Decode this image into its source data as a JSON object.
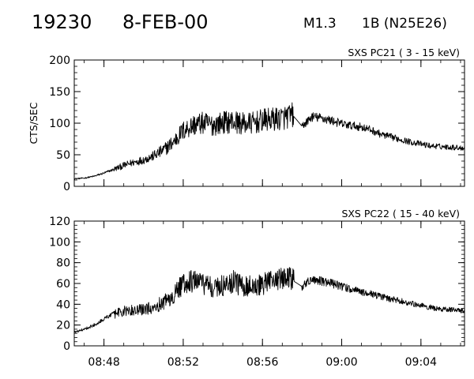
{
  "header": {
    "event_id": "19230",
    "date": "8-FEB-00",
    "goes_class": "M1.3",
    "optical_class": "1B (N25E26)"
  },
  "chart_data": [
    {
      "type": "line",
      "title": "SXS PC21  (  3 - 15 keV)",
      "ylabel": "CTS/SEC",
      "xlabel": "",
      "ylim": [
        0,
        200
      ],
      "yticks": [
        0,
        50,
        100,
        150,
        200
      ],
      "xlim_min": [
        46.5,
        66.2
      ],
      "xticks": [
        "08:48",
        "08:52",
        "08:56",
        "09:00",
        "09:04"
      ],
      "grid": false,
      "series": [
        {
          "x_min": [
            46.5,
            47.0,
            47.5,
            48.0,
            48.5,
            49.0,
            49.5,
            50.0,
            50.5,
            51.0,
            51.5,
            52.0,
            52.5,
            53.0,
            53.5,
            54.0,
            54.5,
            55.0,
            55.5,
            56.0,
            56.5,
            57.0,
            57.5,
            57.6,
            58.0,
            58.5,
            59.0,
            59.5,
            60.0,
            60.5,
            61.0,
            61.5,
            62.0,
            62.5,
            63.0,
            63.5,
            64.0,
            64.5,
            65.0,
            65.5,
            66.0,
            66.2
          ],
          "values": [
            12,
            13,
            16,
            21,
            27,
            33,
            38,
            42,
            48,
            57,
            70,
            88,
            97,
            100,
            97,
            101,
            103,
            99,
            100,
            104,
            106,
            108,
            113,
            110,
            95,
            110,
            108,
            104,
            99,
            96,
            94,
            89,
            82,
            78,
            74,
            70,
            67,
            64,
            63,
            62,
            61,
            61
          ]
        }
      ]
    },
    {
      "type": "line",
      "title": "SXS PC22  ( 15 - 40 keV)",
      "ylabel": "",
      "xlabel": "",
      "ylim": [
        0,
        120
      ],
      "yticks": [
        0,
        20,
        40,
        60,
        80,
        100,
        120
      ],
      "xlim_min": [
        46.5,
        66.2
      ],
      "xticks": [
        "08:48",
        "08:52",
        "08:56",
        "09:00",
        "09:04"
      ],
      "grid": false,
      "series": [
        {
          "x_min": [
            46.5,
            47.0,
            47.5,
            48.0,
            48.5,
            49.0,
            49.5,
            50.0,
            50.5,
            51.0,
            51.5,
            52.0,
            52.5,
            53.0,
            53.5,
            54.0,
            54.5,
            55.0,
            55.5,
            56.0,
            56.5,
            57.0,
            57.5,
            57.6,
            58.0,
            58.5,
            59.0,
            59.5,
            60.0,
            60.5,
            61.0,
            61.5,
            62.0,
            62.5,
            63.0,
            63.5,
            64.0,
            64.5,
            65.0,
            65.5,
            66.0,
            66.2
          ],
          "values": [
            13,
            16,
            20,
            26,
            31,
            33,
            34,
            35,
            37,
            42,
            48,
            60,
            63,
            60,
            56,
            58,
            62,
            57,
            58,
            59,
            62,
            65,
            64,
            62,
            57,
            64,
            62,
            60,
            57,
            54,
            52,
            50,
            47,
            45,
            43,
            41,
            39,
            37,
            35,
            35,
            34,
            34
          ]
        }
      ]
    }
  ]
}
